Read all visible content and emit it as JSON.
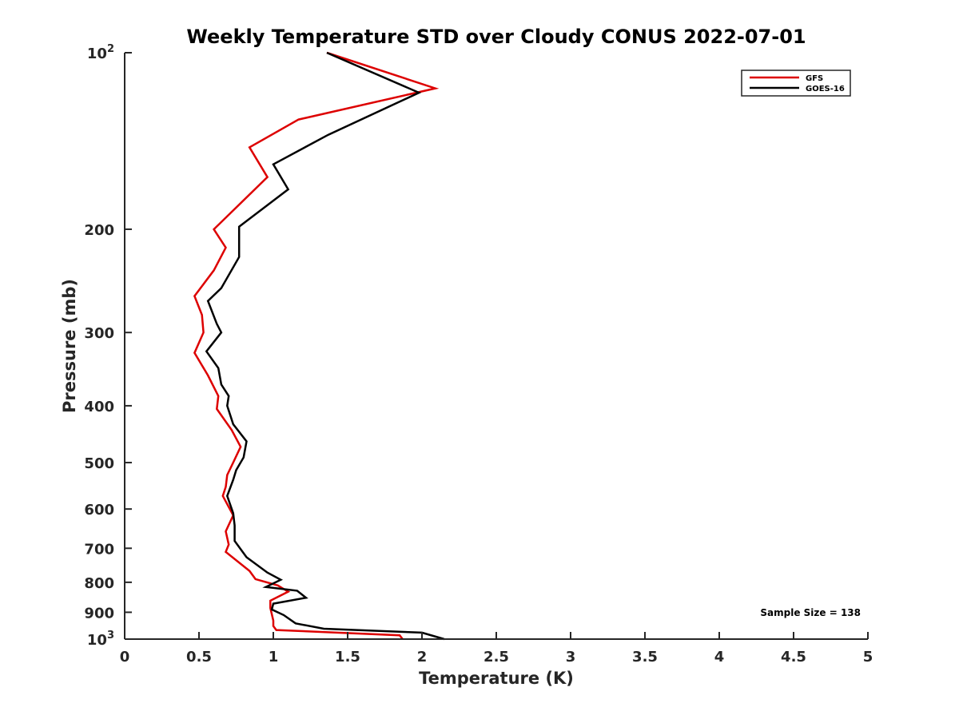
{
  "chart_data": {
    "type": "line",
    "title": "Weekly Temperature STD over Cloudy CONUS 2022-07-01",
    "xlabel": "Temperature (K)",
    "ylabel": "Pressure (mb)",
    "xlim": [
      0,
      5
    ],
    "ylim": [
      100,
      1000
    ],
    "y_scale": "log",
    "y_reversed": true,
    "grid": false,
    "x_ticks": [
      {
        "value": 0,
        "label": "0"
      },
      {
        "value": 0.5,
        "label": "0.5"
      },
      {
        "value": 1,
        "label": "1"
      },
      {
        "value": 1.5,
        "label": "1.5"
      },
      {
        "value": 2,
        "label": "2"
      },
      {
        "value": 2.5,
        "label": "2.5"
      },
      {
        "value": 3,
        "label": "3"
      },
      {
        "value": 3.5,
        "label": "3.5"
      },
      {
        "value": 4,
        "label": "4"
      },
      {
        "value": 4.5,
        "label": "4.5"
      },
      {
        "value": 5,
        "label": "5"
      }
    ],
    "y_ticks": [
      {
        "value": 100,
        "label": "10",
        "sup": "2"
      },
      {
        "value": 200,
        "label": "200"
      },
      {
        "value": 300,
        "label": "300"
      },
      {
        "value": 400,
        "label": "400"
      },
      {
        "value": 500,
        "label": "500"
      },
      {
        "value": 600,
        "label": "600"
      },
      {
        "value": 700,
        "label": "700"
      },
      {
        "value": 800,
        "label": "800"
      },
      {
        "value": 900,
        "label": "900"
      },
      {
        "value": 1000,
        "label": "10",
        "sup": "3"
      }
    ],
    "legend_placement": "top-right",
    "annotation": "Sample Size = 138",
    "series": [
      {
        "name": "GFS",
        "color": "#dd0000",
        "points": [
          [
            1.36,
            100
          ],
          [
            2.09,
            115
          ],
          [
            1.17,
            130
          ],
          [
            0.84,
            145
          ],
          [
            0.96,
            163
          ],
          [
            0.6,
            200
          ],
          [
            0.68,
            215
          ],
          [
            0.6,
            235
          ],
          [
            0.47,
            260
          ],
          [
            0.52,
            280
          ],
          [
            0.53,
            300
          ],
          [
            0.47,
            325
          ],
          [
            0.56,
            355
          ],
          [
            0.63,
            385
          ],
          [
            0.62,
            405
          ],
          [
            0.72,
            440
          ],
          [
            0.78,
            470
          ],
          [
            0.73,
            500
          ],
          [
            0.69,
            525
          ],
          [
            0.68,
            550
          ],
          [
            0.66,
            570
          ],
          [
            0.73,
            615
          ],
          [
            0.68,
            655
          ],
          [
            0.7,
            690
          ],
          [
            0.68,
            710
          ],
          [
            0.84,
            765
          ],
          [
            0.88,
            790
          ],
          [
            1.03,
            810
          ],
          [
            1.1,
            830
          ],
          [
            0.98,
            860
          ],
          [
            0.98,
            885
          ],
          [
            1.0,
            930
          ],
          [
            1.0,
            950
          ],
          [
            1.02,
            965
          ],
          [
            1.85,
            985
          ],
          [
            1.87,
            1000
          ]
        ]
      },
      {
        "name": "GOES-16",
        "color": "#000000",
        "points": [
          [
            1.36,
            100
          ],
          [
            1.98,
            117
          ],
          [
            1.37,
            138
          ],
          [
            1.0,
            155
          ],
          [
            1.1,
            171
          ],
          [
            0.77,
            198
          ],
          [
            0.77,
            223
          ],
          [
            0.65,
            252
          ],
          [
            0.56,
            265
          ],
          [
            0.62,
            290
          ],
          [
            0.65,
            300
          ],
          [
            0.55,
            323
          ],
          [
            0.63,
            345
          ],
          [
            0.65,
            368
          ],
          [
            0.7,
            385
          ],
          [
            0.69,
            400
          ],
          [
            0.73,
            430
          ],
          [
            0.82,
            460
          ],
          [
            0.8,
            490
          ],
          [
            0.75,
            515
          ],
          [
            0.73,
            535
          ],
          [
            0.69,
            570
          ],
          [
            0.73,
            610
          ],
          [
            0.74,
            640
          ],
          [
            0.74,
            680
          ],
          [
            0.82,
            725
          ],
          [
            0.96,
            770
          ],
          [
            1.05,
            792
          ],
          [
            0.95,
            815
          ],
          [
            1.16,
            827
          ],
          [
            1.22,
            850
          ],
          [
            1.0,
            870
          ],
          [
            0.99,
            890
          ],
          [
            1.07,
            910
          ],
          [
            1.15,
            940
          ],
          [
            1.34,
            960
          ],
          [
            2.0,
            975
          ],
          [
            2.15,
            1000
          ]
        ]
      }
    ]
  }
}
